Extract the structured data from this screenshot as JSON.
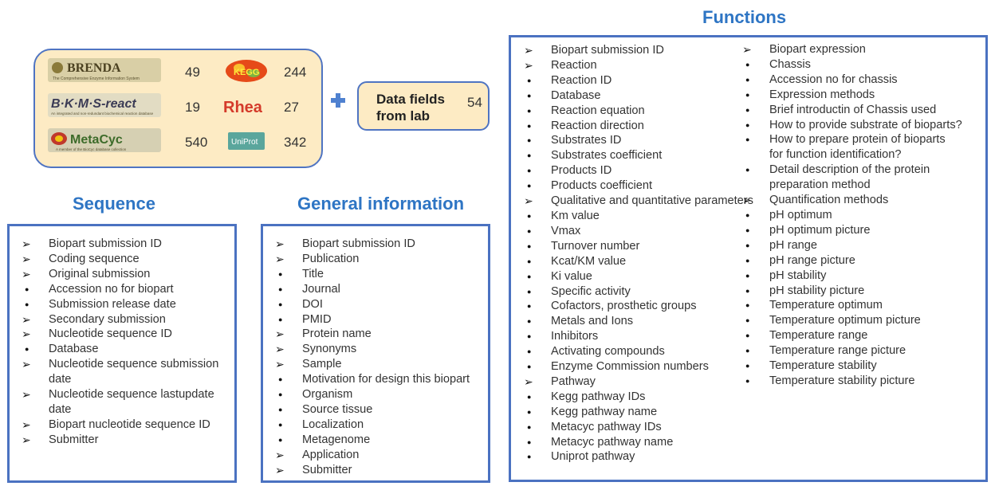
{
  "sources": {
    "rows": [
      {
        "left_logo": "BRENDA",
        "left_logo_sub": "The Comprehensive Enzyme Information System",
        "left_count": "49",
        "right_logo": "KEGG",
        "right_count": "244"
      },
      {
        "left_logo": "B·K·M·S-react",
        "left_logo_sub": "An integrated and non-redundant biochemical reaction database",
        "left_count": "19",
        "right_logo": "Rhea",
        "right_count": "27"
      },
      {
        "left_logo": "MetaCyc",
        "left_logo_sub": "A member of the BioCyc database collection",
        "left_count": "540",
        "right_logo": "UniProt",
        "right_count": "342"
      }
    ],
    "plus_icon": "plus-icon"
  },
  "lab": {
    "label": "Data fields\nfrom lab",
    "count": "54"
  },
  "colors": {
    "accent_blue": "#2e75c4",
    "border_blue": "#4b72c1",
    "source_fill": "#fdebc4",
    "rhea_red": "#d43a2a"
  },
  "sequence": {
    "title": "Sequence",
    "items": [
      {
        "marker": "arrow",
        "text": "Biopart submission ID"
      },
      {
        "marker": "arrow",
        "text": "Coding sequence"
      },
      {
        "marker": "arrow",
        "text": "Original submission"
      },
      {
        "marker": "dot",
        "text": "Accession no for biopart"
      },
      {
        "marker": "dot",
        "text": "Submission release date"
      },
      {
        "marker": "arrow",
        "text": "Secondary submission"
      },
      {
        "marker": "arrow",
        "text": "Nucleotide sequence ID"
      },
      {
        "marker": "dot",
        "text": "Database"
      },
      {
        "marker": "arrow",
        "text": "Nucleotide sequence submission\ndate"
      },
      {
        "marker": "arrow",
        "text": "Nucleotide sequence lastupdate\ndate"
      },
      {
        "marker": "arrow",
        "text": "Biopart nucleotide sequence ID"
      },
      {
        "marker": "arrow",
        "text": "Submitter"
      }
    ]
  },
  "general": {
    "title": "General information",
    "items": [
      {
        "marker": "arrow",
        "text": "Biopart submission ID"
      },
      {
        "marker": "arrow",
        "text": "Publication"
      },
      {
        "marker": "dot",
        "text": "Title"
      },
      {
        "marker": "dot",
        "text": "Journal"
      },
      {
        "marker": "dot",
        "text": "DOI"
      },
      {
        "marker": "dot",
        "text": "PMID"
      },
      {
        "marker": "arrow",
        "text": "Protein name"
      },
      {
        "marker": "arrow",
        "text": "Synonyms"
      },
      {
        "marker": "arrow",
        "text": "Sample"
      },
      {
        "marker": "dot",
        "text": "Motivation for design this biopart"
      },
      {
        "marker": "dot",
        "text": "Organism"
      },
      {
        "marker": "dot",
        "text": "Source tissue"
      },
      {
        "marker": "dot",
        "text": "Localization"
      },
      {
        "marker": "dot",
        "text": "Metagenome"
      },
      {
        "marker": "arrow",
        "text": "Application"
      },
      {
        "marker": "arrow",
        "text": "Submitter"
      }
    ]
  },
  "functions": {
    "title": "Functions",
    "col1": [
      {
        "marker": "arrow",
        "text": "Biopart submission ID"
      },
      {
        "marker": "arrow",
        "text": "Reaction"
      },
      {
        "marker": "dot",
        "text": "Reaction ID"
      },
      {
        "marker": "dot",
        "text": "Database"
      },
      {
        "marker": "dot",
        "text": "Reaction equation"
      },
      {
        "marker": "dot",
        "text": "Reaction direction"
      },
      {
        "marker": "dot",
        "text": "Substrates ID"
      },
      {
        "marker": "dot",
        "text": "Substrates coefficient"
      },
      {
        "marker": "dot",
        "text": "Products ID"
      },
      {
        "marker": "dot",
        "text": "Products coefficient"
      },
      {
        "marker": "arrow",
        "text": "Qualitative and quantitative parameters"
      },
      {
        "marker": "dot",
        "text": "Km value"
      },
      {
        "marker": "dot",
        "text": "Vmax"
      },
      {
        "marker": "dot",
        "text": "Turnover number"
      },
      {
        "marker": "dot",
        "text": "Kcat/KM value"
      },
      {
        "marker": "dot",
        "text": "Ki value"
      },
      {
        "marker": "dot",
        "text": "Specific activity"
      },
      {
        "marker": "dot",
        "text": "Cofactors, prosthetic groups"
      },
      {
        "marker": "dot",
        "text": "Metals and Ions"
      },
      {
        "marker": "dot",
        "text": "Inhibitors"
      },
      {
        "marker": "dot",
        "text": "Activating compounds"
      },
      {
        "marker": "dot",
        "text": "Enzyme Commission numbers"
      },
      {
        "marker": "arrow",
        "text": "Pathway"
      },
      {
        "marker": "dot",
        "text": "Kegg pathway IDs"
      },
      {
        "marker": "dot",
        "text": "Kegg pathway name"
      },
      {
        "marker": "dot",
        "text": "Metacyc pathway IDs"
      },
      {
        "marker": "dot",
        "text": "Metacyc pathway name"
      },
      {
        "marker": "dot",
        "text": "Uniprot pathway"
      }
    ],
    "col2": [
      {
        "marker": "arrow",
        "text": "Biopart expression"
      },
      {
        "marker": "dot",
        "text": "Chassis"
      },
      {
        "marker": "dot",
        "text": "Accession no for chassis"
      },
      {
        "marker": "dot",
        "text": "Expression methods"
      },
      {
        "marker": "dot",
        "text": "Brief introductin of Chassis used"
      },
      {
        "marker": "dot",
        "text": "How to provide substrate of bioparts?"
      },
      {
        "marker": "dot",
        "text": "How to prepare protein of bioparts\nfor function identification?"
      },
      {
        "marker": "dot",
        "text": "Detail description of the protein\npreparation method"
      },
      {
        "marker": "arrow",
        "text": "Quantification methods"
      },
      {
        "marker": "dot",
        "text": "pH optimum"
      },
      {
        "marker": "dot",
        "text": "pH optimum picture"
      },
      {
        "marker": "dot",
        "text": "pH range"
      },
      {
        "marker": "dot",
        "text": "pH range picture"
      },
      {
        "marker": "dot",
        "text": "pH stability"
      },
      {
        "marker": "dot",
        "text": "pH stability picture"
      },
      {
        "marker": "dot",
        "text": "Temperature optimum"
      },
      {
        "marker": "dot",
        "text": "Temperature optimum picture"
      },
      {
        "marker": "dot",
        "text": "Temperature range"
      },
      {
        "marker": "dot",
        "text": "Temperature range picture"
      },
      {
        "marker": "dot",
        "text": "Temperature stability"
      },
      {
        "marker": "dot",
        "text": "Temperature stability picture"
      }
    ]
  }
}
